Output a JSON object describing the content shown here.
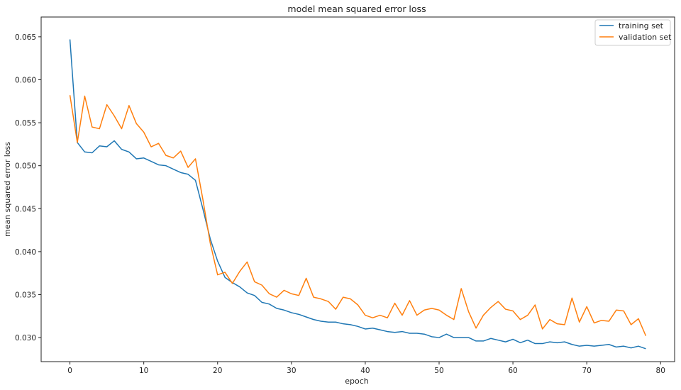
{
  "chart_data": {
    "type": "line",
    "title": "model mean squared error loss",
    "xlabel": "epoch",
    "ylabel": "mean squared error loss",
    "xlim": [
      -3.9,
      81.9
    ],
    "ylim": [
      0.0272,
      0.0673
    ],
    "xticks": [
      0,
      10,
      20,
      30,
      40,
      50,
      60,
      70,
      80
    ],
    "yticks": [
      0.03,
      0.035,
      0.04,
      0.045,
      0.05,
      0.055,
      0.06,
      0.065
    ],
    "ytick_labels": [
      "0.030",
      "0.035",
      "0.040",
      "0.045",
      "0.050",
      "0.055",
      "0.060",
      "0.065"
    ],
    "grid": false,
    "legend": "top-right",
    "x": [
      0,
      1,
      2,
      3,
      4,
      5,
      6,
      7,
      8,
      9,
      10,
      11,
      12,
      13,
      14,
      15,
      16,
      17,
      18,
      19,
      20,
      21,
      22,
      23,
      24,
      25,
      26,
      27,
      28,
      29,
      30,
      31,
      32,
      33,
      34,
      35,
      36,
      37,
      38,
      39,
      40,
      41,
      42,
      43,
      44,
      45,
      46,
      47,
      48,
      49,
      50,
      51,
      52,
      53,
      54,
      55,
      56,
      57,
      58,
      59,
      60,
      61,
      62,
      63,
      64,
      65,
      66,
      67,
      68,
      69,
      70,
      71,
      72,
      73,
      74,
      75,
      76,
      77,
      78
    ],
    "series": [
      {
        "name": "training set",
        "color": "#1f77b4",
        "values": [
          0.0647,
          0.0527,
          0.0516,
          0.0515,
          0.0523,
          0.0522,
          0.0529,
          0.0519,
          0.0516,
          0.0508,
          0.0509,
          0.0505,
          0.0501,
          0.05,
          0.0496,
          0.0492,
          0.049,
          0.0483,
          0.045,
          0.0415,
          0.0389,
          0.037,
          0.0364,
          0.0359,
          0.0352,
          0.0349,
          0.0341,
          0.0339,
          0.0334,
          0.0332,
          0.0329,
          0.0327,
          0.0324,
          0.0321,
          0.0319,
          0.0318,
          0.0318,
          0.0316,
          0.0315,
          0.0313,
          0.031,
          0.0311,
          0.0309,
          0.0307,
          0.0306,
          0.0307,
          0.0305,
          0.0305,
          0.0304,
          0.0301,
          0.03,
          0.0304,
          0.03,
          0.03,
          0.03,
          0.0296,
          0.0296,
          0.0299,
          0.0297,
          0.0295,
          0.0298,
          0.0294,
          0.0297,
          0.0293,
          0.0293,
          0.0295,
          0.0294,
          0.0295,
          0.0292,
          0.029,
          0.0291,
          0.029,
          0.0291,
          0.0292,
          0.0289,
          0.029,
          0.0288,
          0.029,
          0.0287
        ]
      },
      {
        "name": "validation set",
        "color": "#ff7f0e",
        "values": [
          0.0582,
          0.0527,
          0.0581,
          0.0545,
          0.0543,
          0.0571,
          0.0558,
          0.0543,
          0.057,
          0.0549,
          0.0539,
          0.0522,
          0.0526,
          0.0512,
          0.0509,
          0.0517,
          0.0498,
          0.0508,
          0.0461,
          0.041,
          0.0373,
          0.0376,
          0.0363,
          0.0377,
          0.0388,
          0.0365,
          0.0361,
          0.0351,
          0.0347,
          0.0355,
          0.0351,
          0.0349,
          0.0369,
          0.0347,
          0.0345,
          0.0342,
          0.0333,
          0.0347,
          0.0345,
          0.0338,
          0.0326,
          0.0323,
          0.0326,
          0.0323,
          0.034,
          0.0326,
          0.0343,
          0.0326,
          0.0332,
          0.0334,
          0.0332,
          0.0326,
          0.0321,
          0.0357,
          0.033,
          0.0311,
          0.0326,
          0.0335,
          0.0342,
          0.0333,
          0.0331,
          0.0321,
          0.0326,
          0.0338,
          0.031,
          0.0321,
          0.0316,
          0.0315,
          0.0346,
          0.0318,
          0.0336,
          0.0317,
          0.032,
          0.0319,
          0.0332,
          0.0331,
          0.0315,
          0.0322,
          0.0302
        ]
      }
    ]
  }
}
